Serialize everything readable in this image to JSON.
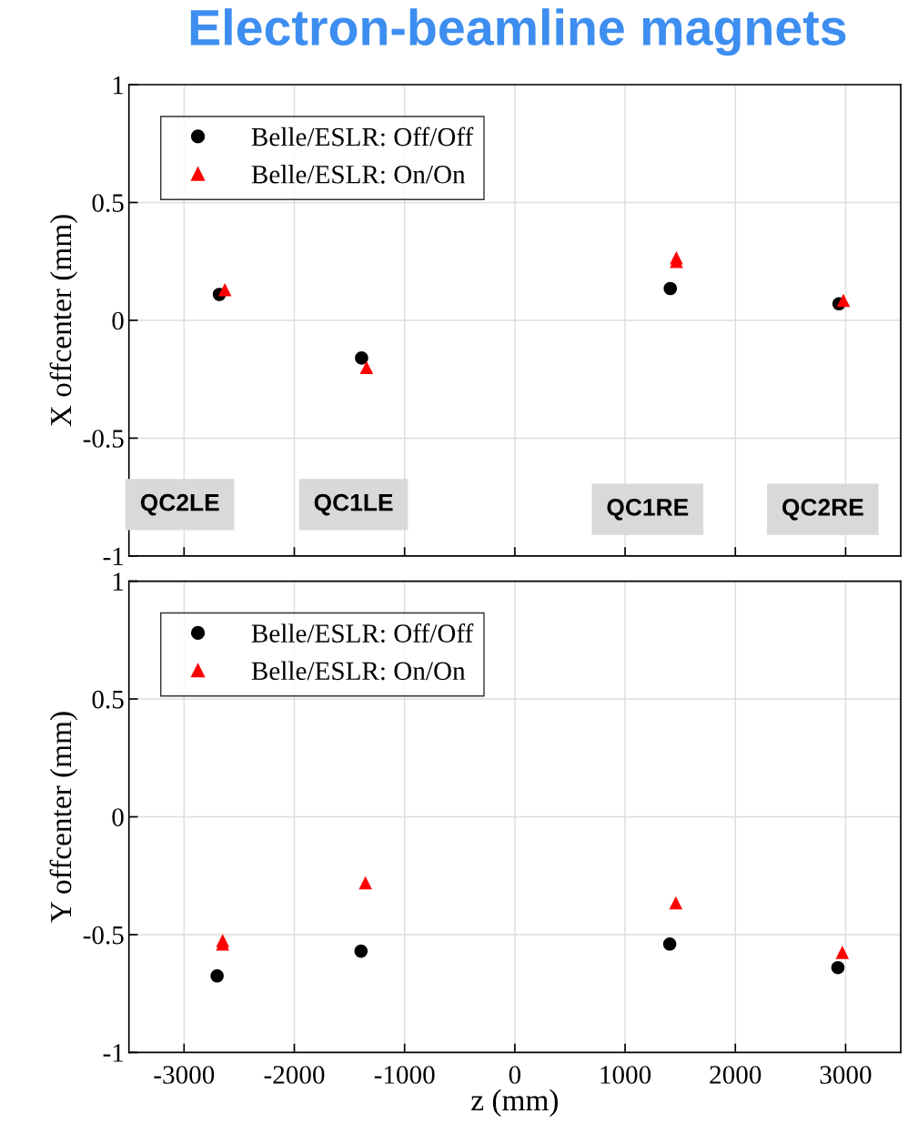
{
  "chart_data": [
    {
      "type": "scatter",
      "title": "Electron-beamline magnets",
      "ylabel": "X offcenter (mm)",
      "xlim": [
        -3500,
        3500
      ],
      "xticks": [
        -3000,
        -2000,
        -1000,
        0,
        1000,
        2000,
        3000
      ],
      "ylim": [
        -1,
        1
      ],
      "yticks": [
        -1,
        -0.5,
        0,
        0.5,
        1
      ],
      "grid": true,
      "legend": "top left",
      "tick_labels": "y",
      "annotations": [
        "QC2LE",
        "QC1LE",
        "QC1RE",
        "QC2RE"
      ],
      "series": [
        {
          "name": "Belle/ESLR: Off/Off",
          "color": "#000000",
          "marker": "circle",
          "x": [
            -2680,
            -1390,
            1410,
            2940
          ],
          "values": [
            0.11,
            -0.16,
            0.135,
            0.07
          ]
        },
        {
          "name": "Belle/ESLR: On/On",
          "color": "#ff0000",
          "marker": "triangle",
          "x": [
            -2630,
            -1345,
            1465,
            1465,
            2980
          ],
          "values": [
            0.13,
            -0.2,
            0.265,
            0.25,
            0.085
          ]
        }
      ]
    },
    {
      "type": "scatter",
      "ylabel": "Y offcenter (mm)",
      "xlabel": "z (mm)",
      "xlim": [
        -3500,
        3500
      ],
      "xticks": [
        -3000,
        -2000,
        -1000,
        0,
        1000,
        2000,
        3000
      ],
      "ylim": [
        -1,
        1
      ],
      "yticks": [
        -1,
        -0.5,
        0,
        0.5,
        1
      ],
      "grid": true,
      "legend": "top left",
      "series": [
        {
          "name": "Belle/ESLR: Off/Off",
          "color": "#000000",
          "marker": "circle",
          "x": [
            -2700,
            -1395,
            1405,
            2930
          ],
          "values": [
            -0.675,
            -0.57,
            -0.54,
            -0.64
          ]
        },
        {
          "name": "Belle/ESLR: On/On",
          "color": "#ff0000",
          "marker": "triangle",
          "x": [
            -2650,
            -1355,
            1460,
            2970
          ],
          "values": [
            -0.525,
            -0.28,
            -0.365,
            -0.575
          ]
        },
        {
          "color": "#ff0000",
          "marker": "triangle",
          "x": [
            -2650
          ],
          "values": [
            -0.54
          ]
        }
      ]
    }
  ]
}
